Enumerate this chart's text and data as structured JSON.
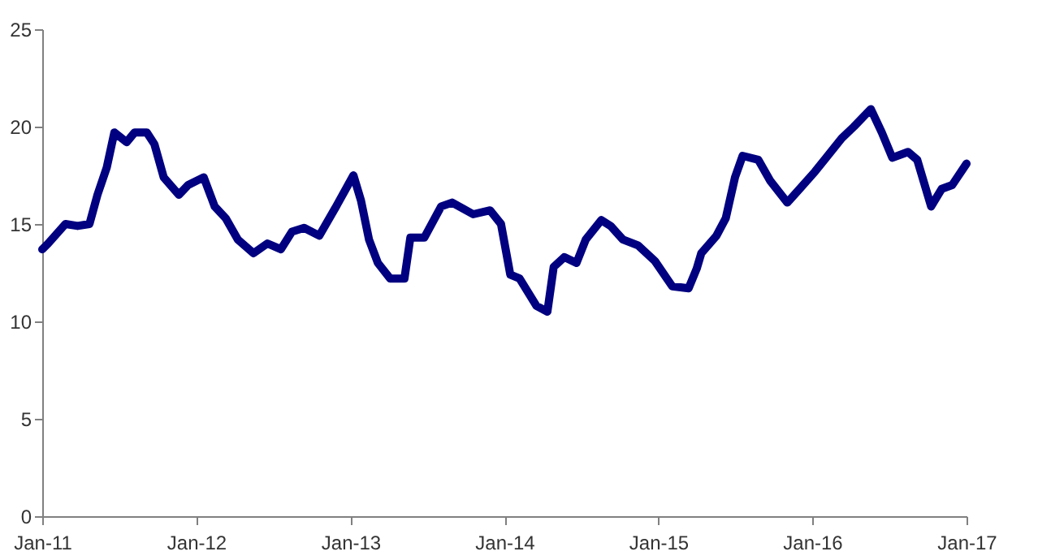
{
  "chart_data": {
    "type": "line",
    "x": [
      "2011-01-01",
      "2011-01-15",
      "2011-02-25",
      "2011-03-26",
      "2011-04-23",
      "2011-05-12",
      "2011-06-03",
      "2011-06-21",
      "2011-07-20",
      "2011-08-08",
      "2011-09-06",
      "2011-09-24",
      "2011-10-16",
      "2011-11-21",
      "2011-12-13",
      "2012-01-19",
      "2012-02-14",
      "2012-03-11",
      "2012-04-09",
      "2012-05-16",
      "2012-06-18",
      "2012-07-20",
      "2012-08-15",
      "2012-09-13",
      "2012-10-19",
      "2012-11-28",
      "2013-01-08",
      "2013-01-26",
      "2013-02-14",
      "2013-03-07",
      "2013-04-05",
      "2013-05-09",
      "2013-05-23",
      "2013-06-25",
      "2013-08-04",
      "2013-08-30",
      "2013-10-19",
      "2013-11-28",
      "2013-12-24",
      "2014-01-15",
      "2014-02-06",
      "2014-03-18",
      "2014-04-13",
      "2014-04-28",
      "2014-05-23",
      "2014-06-21",
      "2014-07-13",
      "2014-08-19",
      "2014-09-10",
      "2014-10-09",
      "2014-11-14",
      "2014-12-24",
      "2015-02-03",
      "2015-03-14",
      "2015-04-02",
      "2015-04-13",
      "2015-05-19",
      "2015-06-10",
      "2015-07-02",
      "2015-07-20",
      "2015-08-26",
      "2015-09-24",
      "2015-11-03",
      "2015-12-02",
      "2016-01-08",
      "2016-02-03",
      "2016-03-11",
      "2016-04-09",
      "2016-05-19",
      "2016-06-14",
      "2016-07-09",
      "2016-08-15",
      "2016-09-06",
      "2016-10-09",
      "2016-11-03",
      "2016-11-28",
      "2017-01-01"
    ],
    "series": [
      {
        "color": "#000080",
        "values": [
          13.7,
          14.0,
          15.0,
          14.9,
          15.0,
          16.5,
          17.9,
          19.7,
          19.2,
          19.7,
          19.7,
          19.1,
          17.4,
          16.5,
          17.0,
          17.4,
          15.9,
          15.3,
          14.2,
          13.5,
          14.0,
          13.7,
          14.6,
          14.8,
          14.4,
          15.9,
          17.5,
          16.2,
          14.2,
          13.0,
          12.2,
          12.2,
          14.3,
          14.3,
          15.9,
          16.1,
          15.5,
          15.7,
          15.0,
          12.4,
          12.2,
          10.8,
          10.5,
          12.8,
          13.3,
          13.0,
          14.2,
          15.2,
          14.9,
          14.2,
          13.9,
          13.1,
          11.8,
          11.7,
          12.7,
          13.5,
          14.4,
          15.3,
          17.4,
          18.5,
          18.3,
          17.2,
          16.1,
          16.8,
          17.7,
          18.4,
          19.4,
          20.0,
          20.9,
          19.7,
          18.4,
          18.7,
          18.3,
          15.9,
          16.8,
          17.0,
          18.1
        ]
      }
    ],
    "xlim": [
      "2011-01-01",
      "2017-01-01"
    ],
    "xticks": [
      {
        "value": "2011-01-01",
        "label": "Jan-11"
      },
      {
        "value": "2012-01-01",
        "label": "Jan-12"
      },
      {
        "value": "2013-01-01",
        "label": "Jan-13"
      },
      {
        "value": "2014-01-01",
        "label": "Jan-14"
      },
      {
        "value": "2015-01-01",
        "label": "Jan-15"
      },
      {
        "value": "2016-01-01",
        "label": "Jan-16"
      },
      {
        "value": "2017-01-01",
        "label": "Jan-17"
      }
    ],
    "ylim": [
      0,
      25
    ],
    "yticks": [
      0,
      5,
      10,
      15,
      20,
      25
    ],
    "grid": false,
    "marker": "none",
    "line_style": "solid"
  }
}
